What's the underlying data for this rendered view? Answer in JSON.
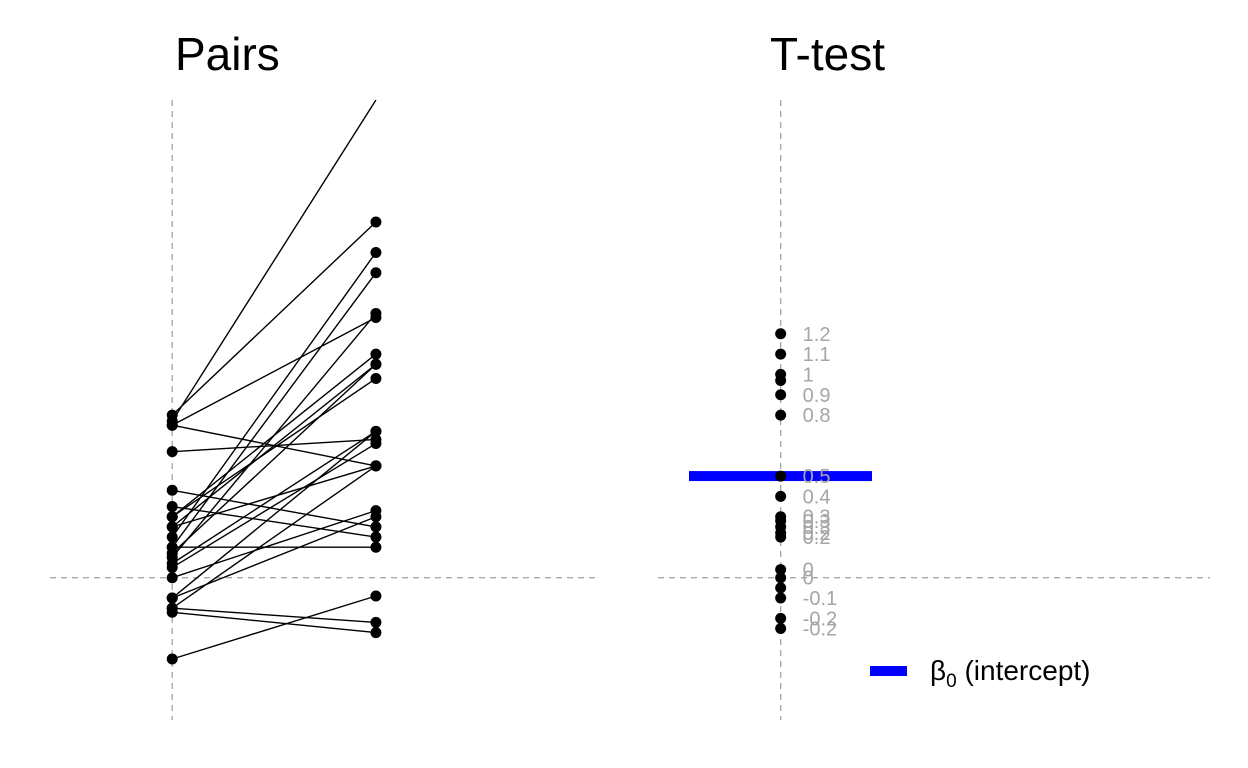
{
  "chart_data": [
    {
      "type": "line",
      "title": "Pairs",
      "x": [
        "",
        ""
      ],
      "xlim": [
        -0.6,
        2.1
      ],
      "ylim": [
        -0.7,
        2.35
      ],
      "pairs": [
        {
          "y1": 0.77,
          "y2": 2.35
        },
        {
          "y1": 0.3,
          "y2": 1.1
        },
        {
          "y1": 0.3,
          "y2": 0.98
        },
        {
          "y1": 0.25,
          "y2": 1.05
        },
        {
          "y1": 0.2,
          "y2": 1.6
        },
        {
          "y1": 0.15,
          "y2": 1.5
        },
        {
          "y1": 0.12,
          "y2": 1.05
        },
        {
          "y1": 0.1,
          "y2": 1.3
        },
        {
          "y1": 0.8,
          "y2": 1.75
        },
        {
          "y1": 0.75,
          "y2": 1.28
        },
        {
          "y1": 0.75,
          "y2": 0.55
        },
        {
          "y1": 0.62,
          "y2": 0.68
        },
        {
          "y1": 0.43,
          "y2": 0.25
        },
        {
          "y1": 0.35,
          "y2": 0.2
        },
        {
          "y1": 0.25,
          "y2": 0.55
        },
        {
          "y1": 0.05,
          "y2": 0.66
        },
        {
          "y1": -0.1,
          "y2": 0.72
        },
        {
          "y1": 0.15,
          "y2": 0.15
        },
        {
          "y1": 0.0,
          "y2": 0.33
        },
        {
          "y1": -0.15,
          "y2": 0.55
        },
        {
          "y1": -0.1,
          "y2": 0.3
        },
        {
          "y1": 0.07,
          "y2": 0.72
        },
        {
          "y1": -0.15,
          "y2": -0.22
        },
        {
          "y1": -0.17,
          "y2": -0.27
        },
        {
          "y1": -0.4,
          "y2": -0.09
        }
      ]
    },
    {
      "type": "scatter",
      "title": "T-test",
      "xlim": [
        -0.6,
        2.1
      ],
      "ylim": [
        -0.7,
        2.35
      ],
      "x": 0,
      "values": [
        1.2,
        1.1,
        1.0,
        0.97,
        0.9,
        0.8,
        0.5,
        0.4,
        0.3,
        0.28,
        0.25,
        0.22,
        0.2,
        0.04,
        0.0,
        -0.05,
        -0.1,
        -0.2,
        -0.25
      ],
      "labels": [
        "1.2",
        "1.1",
        "1",
        "",
        "0.9",
        "0.8",
        "0.5",
        "0.4",
        "0.3",
        "0.3",
        "0.3",
        "0.2",
        "0.2",
        "0",
        "0",
        "",
        "-0.1",
        "-0.2",
        "-0.2"
      ],
      "intercept": 0.5,
      "legend": {
        "label": "β",
        "sub": "0",
        "suffix": " (intercept)",
        "color": "#0000ff",
        "position": "bottom-right"
      }
    }
  ]
}
